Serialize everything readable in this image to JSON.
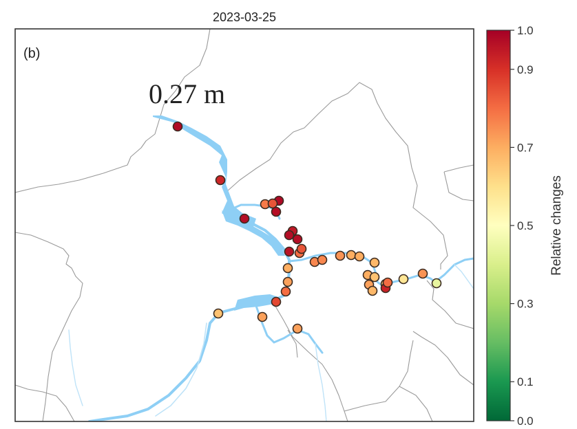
{
  "title": "2023-03-25",
  "panel_label": "(b)",
  "annotation": "0.27 m",
  "colorbar": {
    "label": "Relative changes",
    "ticks": [
      "1.0",
      "0.9",
      "0.7",
      "0.5",
      "0.3",
      "0.1",
      "0.0"
    ],
    "tick_values": [
      1.0,
      0.9,
      0.7,
      0.5,
      0.3,
      0.1,
      0.0
    ],
    "range": [
      0,
      1
    ],
    "colormap": [
      "#006837",
      "#1a9850",
      "#66bd63",
      "#a6d96a",
      "#d9ef8b",
      "#ffffbf",
      "#fee08b",
      "#fdae61",
      "#f46d43",
      "#d73027",
      "#a50026"
    ]
  },
  "colors": {
    "water": "#8ecff5",
    "boundary": "#9a9a9a",
    "frame": "#333333",
    "marker_edge": "#3a2a20"
  },
  "stations": [
    {
      "value": 0.98
    },
    {
      "value": 0.92
    },
    {
      "value": 0.97
    },
    {
      "value": 0.78
    },
    {
      "value": 0.98
    },
    {
      "value": 0.84
    },
    {
      "value": 0.97
    },
    {
      "value": 0.96
    },
    {
      "value": 0.95
    },
    {
      "value": 0.97
    },
    {
      "value": 0.97
    },
    {
      "value": 0.8
    },
    {
      "value": 0.76
    },
    {
      "value": 0.84
    },
    {
      "value": 0.76
    },
    {
      "value": 0.74
    },
    {
      "value": 0.7
    },
    {
      "value": 0.7
    },
    {
      "value": 0.68
    },
    {
      "value": 0.7
    },
    {
      "value": 0.66
    },
    {
      "value": 0.72
    },
    {
      "value": 0.68
    },
    {
      "value": 0.66
    },
    {
      "value": 0.93
    },
    {
      "value": 0.8
    },
    {
      "value": 0.7
    },
    {
      "value": 0.72
    },
    {
      "value": 0.86
    },
    {
      "value": 0.8
    },
    {
      "value": 0.58
    },
    {
      "value": 0.74
    },
    {
      "value": 0.44
    },
    {
      "value": 0.72
    },
    {
      "value": 0.66
    },
    {
      "value": 0.72
    }
  ]
}
